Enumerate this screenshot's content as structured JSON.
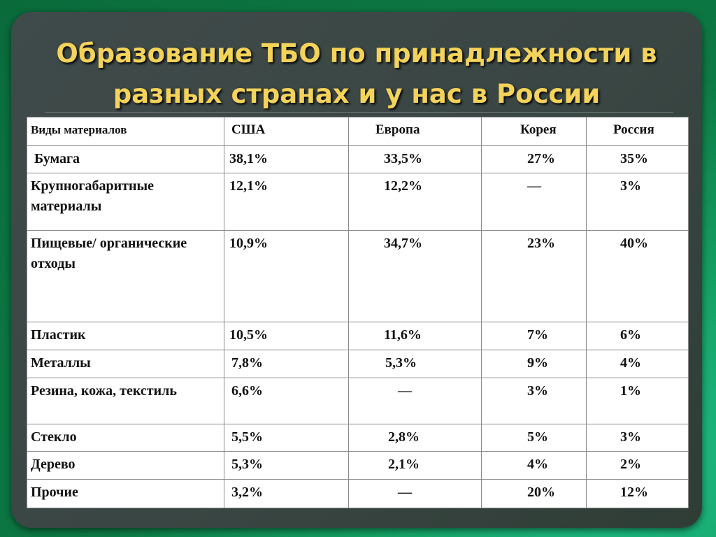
{
  "slide": {
    "title_line1": "Образование ТБО по принадлежности в",
    "title_line2": "разных странах и у нас в России"
  },
  "table": {
    "headers": [
      "Виды материалов",
      "США",
      "Европа",
      "Корея",
      "Россия"
    ],
    "rows": [
      {
        "material": "Бумага",
        "usa": "38,1%",
        "europe": "33,5%",
        "korea": "27%",
        "russia": "35%"
      },
      {
        "material": "Крупногабаритные материалы",
        "usa": "12,1%",
        "europe": "12,2%",
        "korea": "—",
        "russia": "3%"
      },
      {
        "material": "Пищевые/ органические отходы",
        "usa": "10,9%",
        "europe": "34,7%",
        "korea": "23%",
        "russia": "40%"
      },
      {
        "material": "Пластик",
        "usa": "10,5%",
        "europe": "11,6%",
        "korea": "7%",
        "russia": "6%"
      },
      {
        "material": "Металлы",
        "usa": "7,8%",
        "europe": "5,3%",
        "korea": "9%",
        "russia": "4%"
      },
      {
        "material": "Резина, кожа, текстиль",
        "usa": "6,6%",
        "europe": "—",
        "korea": "3%",
        "russia": "1%"
      },
      {
        "material": "Стекло",
        "usa": "5,5%",
        "europe": "2,8%",
        "korea": "5%",
        "russia": "3%"
      },
      {
        "material": "Дерево",
        "usa": "5,3%",
        "europe": "2,1%",
        "korea": "4%",
        "russia": "2%"
      },
      {
        "material": "Прочие",
        "usa": "3,2%",
        "europe": "—",
        "korea": "20%",
        "russia": "12%"
      }
    ]
  }
}
